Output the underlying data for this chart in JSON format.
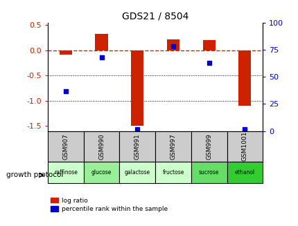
{
  "title": "GDS21 / 8504",
  "samples": [
    "GSM907",
    "GSM990",
    "GSM991",
    "GSM997",
    "GSM999",
    "GSM1001"
  ],
  "protocols": [
    "raffinose",
    "glucose",
    "galactose",
    "fructose",
    "sucrose",
    "ethanol"
  ],
  "protocol_colors": [
    "#ccffcc",
    "#99ee99",
    "#ccffcc",
    "#ccffcc",
    "#66dd66",
    "#33cc33"
  ],
  "log_ratios": [
    -0.08,
    0.33,
    -1.5,
    0.22,
    0.2,
    -1.1
  ],
  "percentile_ranks": [
    37,
    68,
    2,
    78,
    63,
    2
  ],
  "ylim_left": [
    -1.6,
    0.55
  ],
  "ylim_right": [
    0,
    100
  ],
  "left_yticks": [
    -1.5,
    -1.0,
    -0.5,
    0.0,
    0.5
  ],
  "right_yticks": [
    0,
    25,
    50,
    75,
    100
  ],
  "bar_color": "#cc2200",
  "dot_color": "#0000cc",
  "zero_line_color": "#cc2200",
  "grid_color": "#000000",
  "bg_color": "#ffffff",
  "plot_bg": "#ffffff",
  "growth_protocol_label": "growth protocol",
  "legend_log_ratio": "log ratio",
  "legend_percentile": "percentile rank within the sample"
}
